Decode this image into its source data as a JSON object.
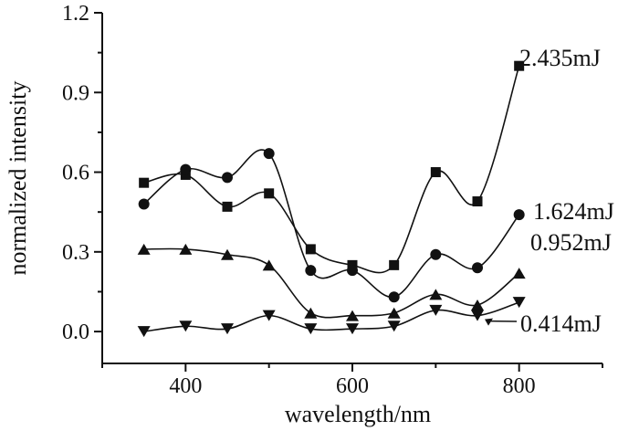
{
  "chart_data": {
    "type": "line",
    "title": "",
    "xlabel": "wavelength/nm",
    "ylabel": "normalized intensity",
    "xlim": [
      300,
      900
    ],
    "ylim": [
      -0.12,
      1.2
    ],
    "xticks": [
      400,
      600,
      800
    ],
    "yticks": [
      0.0,
      0.3,
      0.6,
      0.9,
      1.2
    ],
    "xtick_labels": [
      "400",
      "600",
      "800"
    ],
    "ytick_labels": [
      "0.0",
      "0.3",
      "0.6",
      "0.9",
      "1.2"
    ],
    "grid": false,
    "legend": "inline labels at right end of each series",
    "x": [
      350,
      400,
      450,
      500,
      550,
      600,
      650,
      700,
      750,
      800
    ],
    "series": [
      {
        "name": "2.435mJ",
        "marker": "square",
        "values": [
          0.56,
          0.59,
          0.47,
          0.52,
          0.31,
          0.25,
          0.25,
          0.6,
          0.49,
          1.0
        ]
      },
      {
        "name": "1.624mJ",
        "marker": "circle",
        "values": [
          0.48,
          0.61,
          0.58,
          0.67,
          0.23,
          0.23,
          0.13,
          0.29,
          0.24,
          0.44
        ]
      },
      {
        "name": "0.952mJ",
        "marker": "triangle-up",
        "values": [
          0.31,
          0.31,
          0.29,
          0.25,
          0.07,
          0.06,
          0.07,
          0.14,
          0.1,
          0.22
        ]
      },
      {
        "name": "0.414mJ",
        "marker": "triangle-down",
        "values": [
          0.0,
          0.02,
          0.01,
          0.06,
          0.01,
          0.01,
          0.02,
          0.08,
          0.06,
          0.11
        ]
      }
    ]
  }
}
